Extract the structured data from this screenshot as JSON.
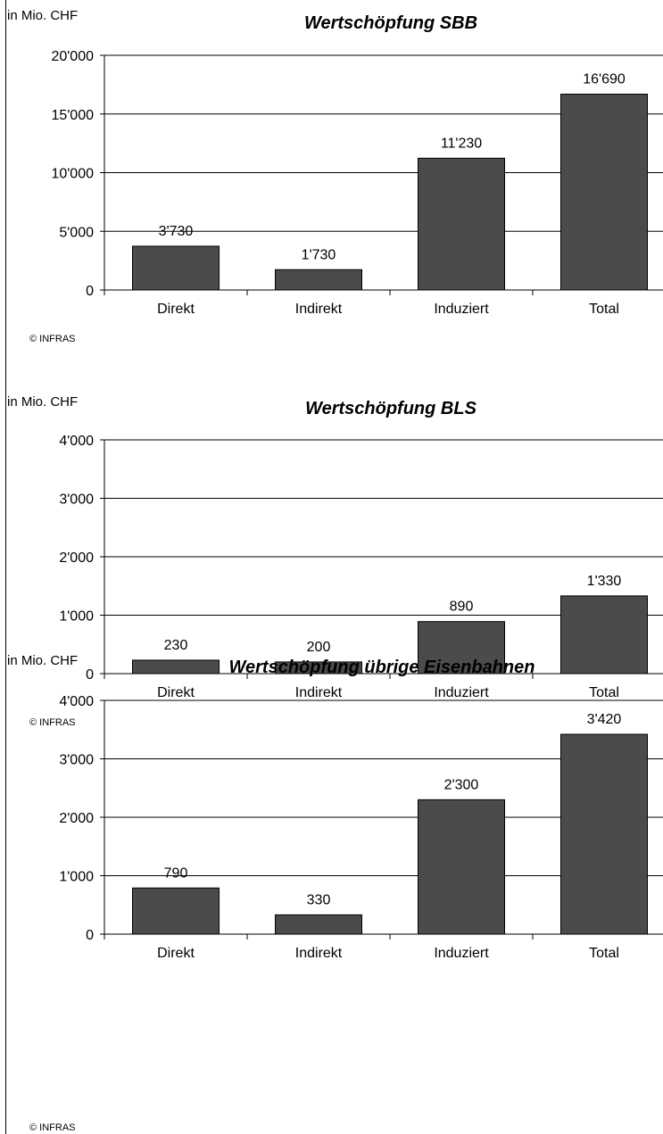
{
  "chart_data": [
    {
      "type": "bar",
      "title": "Wertschöpfung SBB",
      "unit_label": "in Mio. CHF",
      "credit": "© INFRAS",
      "categories": [
        "Direkt",
        "Indirekt",
        "Induziert",
        "Total"
      ],
      "values": [
        3730,
        1730,
        11230,
        16690
      ],
      "value_labels": [
        "3'730",
        "1'730",
        "11'230",
        "16'690"
      ],
      "yticks": [
        0,
        5000,
        10000,
        15000,
        20000
      ],
      "ytick_labels": [
        "0",
        "5'000",
        "10'000",
        "15'000",
        "20'000"
      ],
      "ylim": [
        0,
        20000
      ],
      "grid": true,
      "bar_color": "#4a4b4d"
    },
    {
      "type": "bar",
      "title": "Wertschöpfung BLS",
      "unit_label": "in Mio. CHF",
      "credit": "© INFRAS",
      "categories": [
        "Direkt",
        "Indirekt",
        "Induziert",
        "Total"
      ],
      "values": [
        230,
        200,
        890,
        1330
      ],
      "value_labels": [
        "230",
        "200",
        "890",
        "1'330"
      ],
      "yticks": [
        0,
        1000,
        2000,
        3000,
        4000
      ],
      "ytick_labels": [
        "0",
        "1'000",
        "2'000",
        "3'000",
        "4'000"
      ],
      "ylim": [
        0,
        4000
      ],
      "grid": true,
      "bar_color": "#4a4b4d"
    },
    {
      "type": "bar",
      "title": "Wertschöpfung übrige Eisenbahnen",
      "unit_label": "in Mio. CHF",
      "credit": "© INFRAS",
      "categories": [
        "Direkt",
        "Indirekt",
        "Induziert",
        "Total"
      ],
      "values": [
        790,
        330,
        2300,
        3420
      ],
      "value_labels": [
        "790",
        "330",
        "2'300",
        "3'420"
      ],
      "yticks": [
        0,
        1000,
        2000,
        3000,
        4000
      ],
      "ytick_labels": [
        "0",
        "1'000",
        "2'000",
        "3'000",
        "4'000"
      ],
      "ylim": [
        0,
        4000
      ],
      "grid": true,
      "bar_color": "#4a4b4d"
    }
  ]
}
